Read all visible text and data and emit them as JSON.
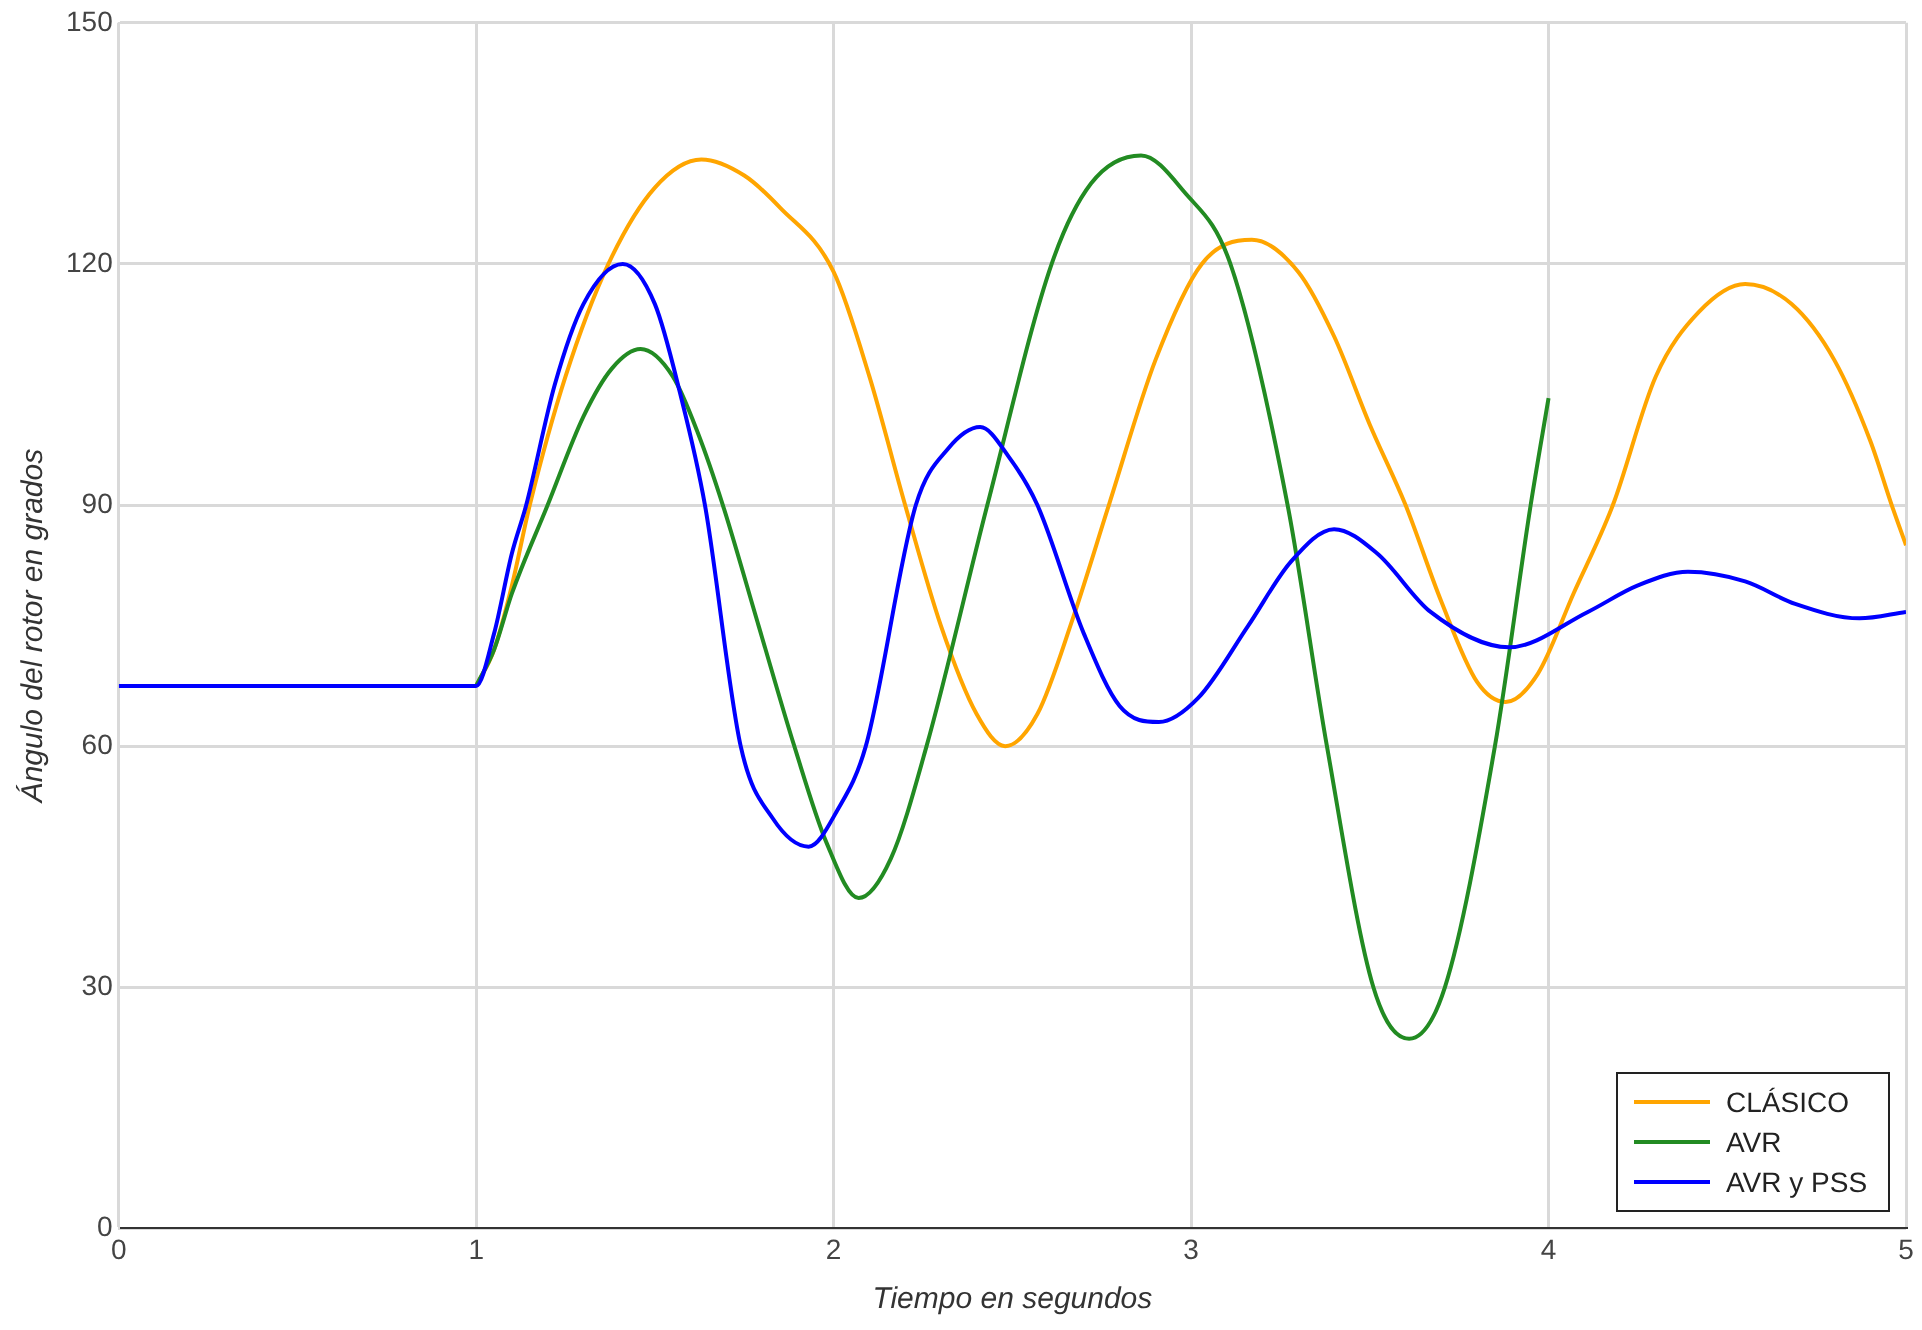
{
  "chart_data": {
    "type": "line",
    "xlabel": "Tiempo en segundos",
    "ylabel": "Ángulo del rotor en grados",
    "xlim": [
      0,
      5
    ],
    "xticks": [
      0,
      1,
      2,
      3,
      4,
      5
    ],
    "ylim": [
      0,
      150
    ],
    "yticks": [
      0,
      30,
      60,
      90,
      120,
      150
    ],
    "grid": true,
    "legend": "bottom right",
    "marker": "none",
    "line_style": "solid",
    "series": [
      {
        "name": "CLÁSICO",
        "color": "#ffa500",
        "x": [
          1,
          1.05,
          1.1,
          1.15,
          1.25,
          1.37,
          1.5,
          1.63,
          1.75,
          1.85,
          2.0,
          2.1,
          2.2,
          2.3,
          2.4,
          2.48,
          2.57,
          2.67,
          2.77,
          2.9,
          3.03,
          3.17,
          3.3,
          3.4,
          3.5,
          3.6,
          3.7,
          3.8,
          3.88,
          3.97,
          4.07,
          4.18,
          4.3,
          4.42,
          4.55,
          4.68,
          4.8,
          4.9,
          4.96,
          5.0
        ],
        "values": [
          67.5,
          72,
          80,
          90,
          106,
          120,
          129.5,
          133,
          131,
          127,
          119,
          106,
          90,
          75,
          64,
          60,
          64,
          76,
          90,
          108,
          120,
          123,
          119,
          111,
          100,
          90,
          78,
          68,
          65.5,
          69,
          79,
          90,
          106,
          114,
          117.5,
          115,
          108,
          98,
          90,
          85
        ]
      },
      {
        "name": "AVR",
        "color": "#228b22",
        "x": [
          1,
          1.05,
          1.1,
          1.2,
          1.3,
          1.38,
          1.46,
          1.55,
          1.62,
          1.69,
          1.79,
          1.89,
          1.98,
          2.07,
          2.16,
          2.26,
          2.43,
          2.61,
          2.72,
          2.86,
          2.98,
          3.11,
          3.27,
          3.38,
          3.51,
          3.61,
          3.71,
          3.85,
          3.95,
          4.0
        ],
        "values": [
          67.5,
          72,
          79,
          90,
          101,
          107,
          109.4,
          106,
          99,
          90,
          75,
          60,
          48,
          41.1,
          46,
          60,
          90,
          120,
          130,
          133.5,
          129,
          120,
          90,
          60,
          30,
          23.6,
          30,
          60,
          90,
          103.3
        ]
      },
      {
        "name": "AVR y PSS",
        "color": "#0000ff",
        "x": [
          0,
          1,
          1.05,
          1.1,
          1.14,
          1.22,
          1.3,
          1.41,
          1.5,
          1.57,
          1.64,
          1.74,
          1.83,
          1.93,
          2.01,
          2.09,
          2.23,
          2.32,
          2.41,
          2.49,
          2.57,
          2.7,
          2.8,
          2.91,
          3.02,
          3.16,
          3.28,
          3.4,
          3.52,
          3.67,
          3.89,
          4.11,
          4.25,
          4.39,
          4.55,
          4.69,
          4.87,
          5.0
        ],
        "values": [
          67.5,
          67.5,
          74,
          84,
          90,
          105,
          115,
          120,
          115,
          104,
          90,
          60,
          51,
          47.5,
          52,
          60,
          90,
          97,
          99.7,
          96,
          90,
          74,
          65,
          63,
          66,
          75,
          83,
          87,
          84,
          76.7,
          72.3,
          76.7,
          80,
          81.7,
          80.5,
          77.7,
          75.9,
          76.7
        ]
      }
    ]
  }
}
